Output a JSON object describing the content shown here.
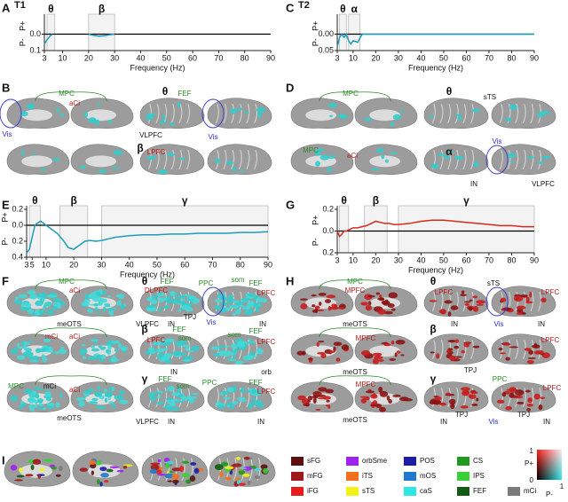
{
  "chart_data": [
    {
      "type": "line",
      "label": "A",
      "title": "T1",
      "xlabel": "Frequency (Hz)",
      "ylabel_pos": "P+",
      "ylabel_neg": "P-",
      "x": [
        3,
        4,
        5,
        6,
        7,
        8,
        9,
        10,
        12,
        14,
        16,
        18,
        20,
        22,
        24,
        26,
        28,
        30,
        35,
        40,
        45,
        50,
        55,
        60,
        65,
        70,
        75,
        80,
        85,
        90
      ],
      "series": [
        {
          "color": "#1b9dbb",
          "values": [
            -0.06,
            -0.035,
            -0.015,
            0,
            null,
            null,
            null,
            null,
            null,
            null,
            null,
            null,
            0,
            -0.008,
            -0.012,
            -0.01,
            -0.004,
            0,
            null,
            null,
            null,
            null,
            null,
            null,
            null,
            null,
            null,
            null,
            null,
            null
          ]
        }
      ],
      "xlim": [
        3,
        90
      ],
      "xticks": [
        3,
        10,
        20,
        30,
        40,
        50,
        60,
        70,
        80,
        90
      ],
      "ylim": [
        -0.1,
        0.1
      ],
      "yticks": [
        {
          "value": 0,
          "label": "0.0"
        },
        {
          "value": -0.1,
          "label": "0.1"
        }
      ],
      "bands": [
        {
          "label": "θ",
          "range": [
            4,
            7
          ]
        },
        {
          "label": "β",
          "range": [
            20,
            30
          ]
        }
      ]
    },
    {
      "type": "line",
      "label": "C",
      "title": "T2",
      "xlabel": "Frequency (Hz)",
      "ylabel_pos": "P+",
      "ylabel_neg": "P-",
      "x": [
        3,
        4,
        5,
        6,
        7,
        8,
        9,
        10,
        12,
        14,
        16,
        18,
        20,
        22,
        24,
        26,
        28,
        30,
        35,
        40,
        45,
        50,
        55,
        60,
        65,
        70,
        75,
        80,
        85,
        90
      ],
      "series": [
        {
          "color": "#1b9dbb",
          "values": [
            -0.04,
            -0.01,
            0,
            -0.01,
            0,
            -0.02,
            -0.03,
            -0.02,
            -0.025,
            0,
            0,
            0,
            0,
            0,
            0,
            0,
            0,
            0,
            0,
            0,
            0,
            0,
            0,
            0,
            0,
            0,
            0,
            0,
            0,
            0
          ]
        }
      ],
      "xlim": [
        3,
        90
      ],
      "xticks": [
        3,
        10,
        20,
        30,
        40,
        50,
        60,
        70,
        80,
        90
      ],
      "ylim": [
        -0.05,
        0.05
      ],
      "yticks": [
        {
          "value": 0,
          "label": "0.00"
        },
        {
          "value": -0.05,
          "label": "0.05"
        }
      ],
      "bands": [
        {
          "label": "θ",
          "range": [
            4,
            7
          ]
        },
        {
          "label": "α",
          "range": [
            8,
            13
          ]
        }
      ]
    },
    {
      "type": "line",
      "label": "E",
      "xlabel": "Frequency (Hz)",
      "ylabel_pos": "P+",
      "ylabel_neg": "P-",
      "x": [
        3,
        4,
        5,
        6,
        7,
        8,
        9,
        10,
        12,
        14,
        16,
        18,
        20,
        22,
        24,
        26,
        28,
        30,
        35,
        40,
        45,
        50,
        55,
        60,
        65,
        70,
        75,
        80,
        85,
        90
      ],
      "series": [
        {
          "color": "#1b9dbb",
          "values": [
            -0.35,
            -0.3,
            -0.15,
            0,
            0.03,
            0.05,
            0.03,
            0,
            -0.05,
            -0.1,
            -0.18,
            -0.28,
            -0.3,
            -0.25,
            -0.2,
            -0.19,
            -0.2,
            -0.19,
            -0.15,
            -0.13,
            -0.12,
            -0.12,
            -0.11,
            -0.11,
            -0.1,
            -0.1,
            -0.1,
            -0.09,
            -0.09,
            -0.08
          ]
        }
      ],
      "xlim": [
        3,
        90
      ],
      "xticks": [
        3,
        5,
        10,
        20,
        30,
        40,
        50,
        60,
        70,
        80,
        90
      ],
      "ylim": [
        -0.4,
        0.2
      ],
      "yticks": [
        0.2,
        {
          "value": 0,
          "label": "0.0"
        },
        {
          "value": -0.2,
          "label": "0.2"
        },
        {
          "value": -0.4,
          "label": "0.4"
        }
      ],
      "bands": [
        {
          "label": "θ",
          "range": [
            4,
            8
          ]
        },
        {
          "label": "β",
          "range": [
            15,
            25
          ]
        },
        {
          "label": "γ",
          "range": [
            30,
            90
          ]
        }
      ]
    },
    {
      "type": "line",
      "label": "G",
      "xlabel": "Frequency (Hz)",
      "ylabel_pos": "P+",
      "ylabel_neg": "P-",
      "x": [
        3,
        4,
        5,
        6,
        7,
        8,
        9,
        10,
        12,
        14,
        16,
        18,
        20,
        22,
        24,
        26,
        28,
        30,
        35,
        40,
        45,
        50,
        55,
        60,
        65,
        70,
        75,
        80,
        85,
        90
      ],
      "series": [
        {
          "color": "#d62a1e",
          "values": [
            0,
            -0.05,
            -0.03,
            0,
            0,
            0.01,
            0.02,
            0.03,
            0.03,
            0.04,
            0.05,
            0.07,
            0.09,
            0.08,
            0.07,
            0.07,
            0.06,
            0.06,
            0.07,
            0.09,
            0.1,
            0.1,
            0.09,
            0.08,
            0.07,
            0.06,
            0.05,
            0.05,
            0.04,
            0.04
          ]
        }
      ],
      "xlim": [
        3,
        90
      ],
      "xticks": [
        3,
        10,
        20,
        30,
        40,
        50,
        60,
        70,
        80,
        90
      ],
      "ylim": [
        -0.2,
        0.2
      ],
      "yticks": [
        0.2,
        {
          "value": 0,
          "label": "0.0"
        },
        {
          "value": -0.2,
          "label": "0.2"
        }
      ],
      "bands": [
        {
          "label": "θ",
          "range": [
            4,
            8
          ]
        },
        {
          "label": "β",
          "range": [
            15,
            25
          ]
        },
        {
          "label": "γ",
          "range": [
            30,
            90
          ]
        }
      ]
    }
  ],
  "panels": [
    {
      "label": "B",
      "labels": [
        "MPC",
        "aCi",
        "Vis",
        "θ",
        "FEF",
        "VLPFC",
        "Vis",
        "β",
        "LPFC"
      ]
    },
    {
      "label": "D",
      "labels": [
        "MPC",
        "θ",
        "sTS",
        "MPC",
        "aCi",
        "Vis",
        "α",
        "IN",
        "VLPFC"
      ]
    },
    {
      "label": "F",
      "labels": [
        "MPC",
        "aCi",
        "meOTS",
        "θ",
        "FEF",
        "DLPFC",
        "PPC",
        "som",
        "FEF",
        "LPFC",
        "VLPFC",
        "IN",
        "TPJ",
        "Vis",
        "IN",
        "mCi",
        "aCi",
        "β",
        "LPFC",
        "FEF",
        "som",
        "som",
        "FEF",
        "LPFC",
        "IN",
        "orb",
        "MPC",
        "mCi",
        "aCi",
        "meOTS",
        "γ",
        "FEF",
        "som",
        "PPC",
        "FEF",
        "LPFC",
        "VLPFC",
        "IN",
        "IN"
      ]
    },
    {
      "label": "H",
      "labels": [
        "MPC",
        "MPFC",
        "meOTS",
        "θ",
        "LPFC",
        "sTS",
        "LPFC",
        "IN",
        "Vis",
        "IN",
        "MPFC",
        "meOTS",
        "β",
        "LPFC",
        "TPJ",
        "MPFC",
        "meOTS",
        "γ",
        "PPC",
        "LPFC",
        "IN",
        "TPJ",
        "Vis",
        "TPJ",
        "IN"
      ]
    },
    {
      "label": "I",
      "labels": []
    }
  ],
  "legend": {
    "items": [
      {
        "name": "sFG",
        "color": "#5c1010"
      },
      {
        "name": "orbSme",
        "color": "#a020f0"
      },
      {
        "name": "POS",
        "color": "#1c1ca8"
      },
      {
        "name": "CS",
        "color": "#1f9a1f"
      },
      {
        "name": "mFG",
        "color": "#9e1a1a"
      },
      {
        "name": "iTS",
        "color": "#f07020"
      },
      {
        "name": "mOS",
        "color": "#1f78d0"
      },
      {
        "name": "IPS",
        "color": "#37d037"
      },
      {
        "name": "iFG",
        "color": "#e81b1b"
      },
      {
        "name": "sTS",
        "color": "#f2f21a"
      },
      {
        "name": "caS",
        "color": "#2ee6e6"
      },
      {
        "name": "FEF",
        "color": "#135a13"
      },
      {
        "name": "mCi",
        "color": "#7a7a7a"
      }
    ],
    "key": {
      "pos": "P+",
      "neg": "P-",
      "pos_max": "1",
      "zero": "0",
      "neg_max": "1"
    }
  }
}
